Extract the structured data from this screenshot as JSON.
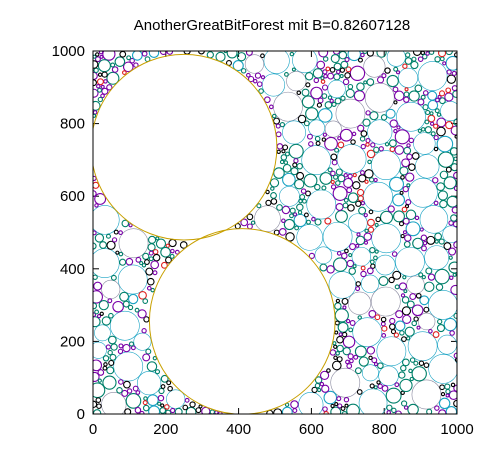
{
  "chart_data": {
    "type": "scatter",
    "title": "AnotherGreatBitForest mit B=0.82607128",
    "xlabel": "",
    "ylabel": "",
    "xlim": [
      0,
      1000
    ],
    "ylim": [
      0,
      1000
    ],
    "x_ticks": [
      "0",
      "200",
      "400",
      "600",
      "800",
      "1000"
    ],
    "y_ticks": [
      "0",
      "200",
      "400",
      "600",
      "800",
      "1000"
    ],
    "grid": false,
    "legend": "none",
    "large_circles": [
      {
        "x": 250,
        "y": 735,
        "r": 255
      },
      {
        "x": 410,
        "y": 255,
        "r": 255
      }
    ],
    "large_circle_color": "#c8a000",
    "small_circle_colors": [
      "#1aa3c4",
      "#8a8aa0",
      "#00806a",
      "#7a00a8",
      "#000000",
      "#e02020"
    ],
    "small_circle_radius_range": [
      4,
      40
    ],
    "small_circle_count": 900
  }
}
